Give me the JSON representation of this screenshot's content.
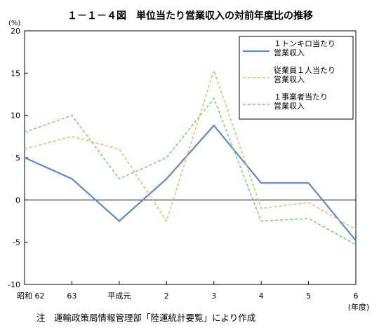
{
  "chart_data": {
    "type": "line",
    "title": "１－１－４図　単位当たり営業収入の対前年度比の推移",
    "y_unit": "(%)",
    "x_unit": "(年度)",
    "categories": [
      "昭和 62",
      "63",
      "平成元",
      "2",
      "3",
      "4",
      "5",
      "6"
    ],
    "ylim": [
      -10,
      20
    ],
    "yticks": [
      20,
      15,
      10,
      5,
      0,
      -5,
      -10
    ],
    "zero_line": true,
    "legend_position": "top-right",
    "series": [
      {
        "name": "１トンキロ当たり\n営業収入",
        "style": "solid",
        "color": "#5b8ad6",
        "values": [
          5.0,
          2.5,
          -2.5,
          2.5,
          8.8,
          2.0,
          2.0,
          -4.8
        ]
      },
      {
        "name": "従業員１人当たり\n営業収入",
        "style": "dashed",
        "color": "#f5b55a",
        "values": [
          6.0,
          7.5,
          6.0,
          -2.5,
          15.3,
          -1.0,
          -0.3,
          -3.5
        ]
      },
      {
        "name": "１事業者当たり\n営業収入",
        "style": "dashed",
        "color": "#66dd66",
        "values": [
          8.0,
          10.0,
          2.5,
          5.0,
          12.0,
          -2.5,
          -2.2,
          -5.3
        ]
      }
    ]
  },
  "note": "注　運輸政策局情報管理部「陸運統計要覧」により作成"
}
